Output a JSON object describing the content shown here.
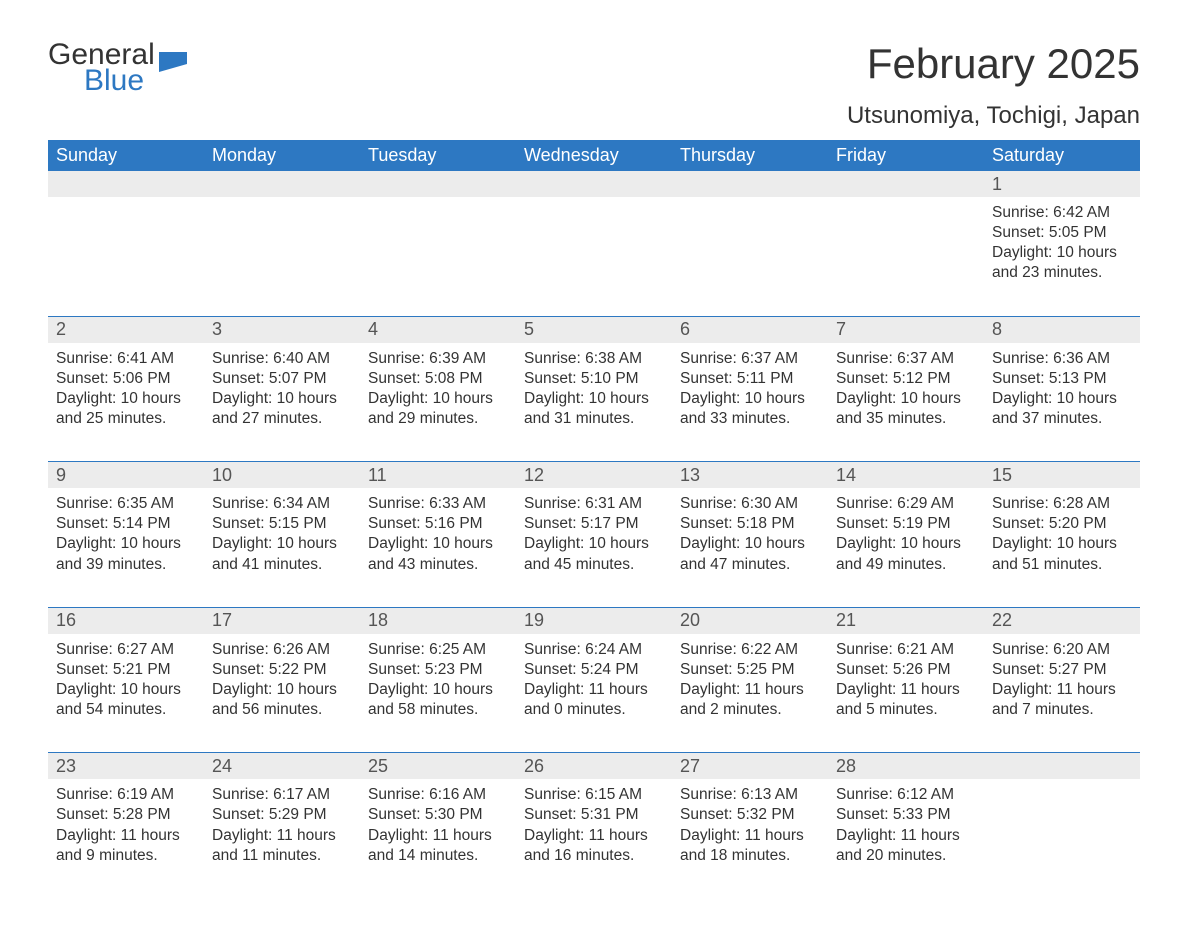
{
  "logo": {
    "general": "General",
    "blue": "Blue",
    "accent_color": "#2d78c2"
  },
  "title": "February 2025",
  "location": "Utsunomiya, Tochigi, Japan",
  "colors": {
    "header_bg": "#2d78c2",
    "header_text": "#ffffff",
    "daynum_bg": "#ececec",
    "daynum_text": "#555555",
    "body_text": "#333333",
    "separator": "#2d78c2",
    "page_bg": "#ffffff"
  },
  "typography": {
    "title_fontsize": 42,
    "location_fontsize": 24,
    "dayheader_fontsize": 18,
    "daynum_fontsize": 18,
    "cell_fontsize": 15.5
  },
  "day_headers": [
    "Sunday",
    "Monday",
    "Tuesday",
    "Wednesday",
    "Thursday",
    "Friday",
    "Saturday"
  ],
  "weeks": [
    [
      null,
      null,
      null,
      null,
      null,
      null,
      {
        "n": "1",
        "sunrise": "6:42 AM",
        "sunset": "5:05 PM",
        "dl_h": "10",
        "dl_m": "23"
      }
    ],
    [
      {
        "n": "2",
        "sunrise": "6:41 AM",
        "sunset": "5:06 PM",
        "dl_h": "10",
        "dl_m": "25"
      },
      {
        "n": "3",
        "sunrise": "6:40 AM",
        "sunset": "5:07 PM",
        "dl_h": "10",
        "dl_m": "27"
      },
      {
        "n": "4",
        "sunrise": "6:39 AM",
        "sunset": "5:08 PM",
        "dl_h": "10",
        "dl_m": "29"
      },
      {
        "n": "5",
        "sunrise": "6:38 AM",
        "sunset": "5:10 PM",
        "dl_h": "10",
        "dl_m": "31"
      },
      {
        "n": "6",
        "sunrise": "6:37 AM",
        "sunset": "5:11 PM",
        "dl_h": "10",
        "dl_m": "33"
      },
      {
        "n": "7",
        "sunrise": "6:37 AM",
        "sunset": "5:12 PM",
        "dl_h": "10",
        "dl_m": "35"
      },
      {
        "n": "8",
        "sunrise": "6:36 AM",
        "sunset": "5:13 PM",
        "dl_h": "10",
        "dl_m": "37"
      }
    ],
    [
      {
        "n": "9",
        "sunrise": "6:35 AM",
        "sunset": "5:14 PM",
        "dl_h": "10",
        "dl_m": "39"
      },
      {
        "n": "10",
        "sunrise": "6:34 AM",
        "sunset": "5:15 PM",
        "dl_h": "10",
        "dl_m": "41"
      },
      {
        "n": "11",
        "sunrise": "6:33 AM",
        "sunset": "5:16 PM",
        "dl_h": "10",
        "dl_m": "43"
      },
      {
        "n": "12",
        "sunrise": "6:31 AM",
        "sunset": "5:17 PM",
        "dl_h": "10",
        "dl_m": "45"
      },
      {
        "n": "13",
        "sunrise": "6:30 AM",
        "sunset": "5:18 PM",
        "dl_h": "10",
        "dl_m": "47"
      },
      {
        "n": "14",
        "sunrise": "6:29 AM",
        "sunset": "5:19 PM",
        "dl_h": "10",
        "dl_m": "49"
      },
      {
        "n": "15",
        "sunrise": "6:28 AM",
        "sunset": "5:20 PM",
        "dl_h": "10",
        "dl_m": "51"
      }
    ],
    [
      {
        "n": "16",
        "sunrise": "6:27 AM",
        "sunset": "5:21 PM",
        "dl_h": "10",
        "dl_m": "54"
      },
      {
        "n": "17",
        "sunrise": "6:26 AM",
        "sunset": "5:22 PM",
        "dl_h": "10",
        "dl_m": "56"
      },
      {
        "n": "18",
        "sunrise": "6:25 AM",
        "sunset": "5:23 PM",
        "dl_h": "10",
        "dl_m": "58"
      },
      {
        "n": "19",
        "sunrise": "6:24 AM",
        "sunset": "5:24 PM",
        "dl_h": "11",
        "dl_m": "0"
      },
      {
        "n": "20",
        "sunrise": "6:22 AM",
        "sunset": "5:25 PM",
        "dl_h": "11",
        "dl_m": "2"
      },
      {
        "n": "21",
        "sunrise": "6:21 AM",
        "sunset": "5:26 PM",
        "dl_h": "11",
        "dl_m": "5"
      },
      {
        "n": "22",
        "sunrise": "6:20 AM",
        "sunset": "5:27 PM",
        "dl_h": "11",
        "dl_m": "7"
      }
    ],
    [
      {
        "n": "23",
        "sunrise": "6:19 AM",
        "sunset": "5:28 PM",
        "dl_h": "11",
        "dl_m": "9"
      },
      {
        "n": "24",
        "sunrise": "6:17 AM",
        "sunset": "5:29 PM",
        "dl_h": "11",
        "dl_m": "11"
      },
      {
        "n": "25",
        "sunrise": "6:16 AM",
        "sunset": "5:30 PM",
        "dl_h": "11",
        "dl_m": "14"
      },
      {
        "n": "26",
        "sunrise": "6:15 AM",
        "sunset": "5:31 PM",
        "dl_h": "11",
        "dl_m": "16"
      },
      {
        "n": "27",
        "sunrise": "6:13 AM",
        "sunset": "5:32 PM",
        "dl_h": "11",
        "dl_m": "18"
      },
      {
        "n": "28",
        "sunrise": "6:12 AM",
        "sunset": "5:33 PM",
        "dl_h": "11",
        "dl_m": "20"
      },
      null
    ]
  ],
  "labels": {
    "sunrise_prefix": "Sunrise: ",
    "sunset_prefix": "Sunset: ",
    "daylight_prefix": "Daylight: ",
    "hours_word": " hours",
    "and_word": "and ",
    "minutes_word": " minutes."
  }
}
